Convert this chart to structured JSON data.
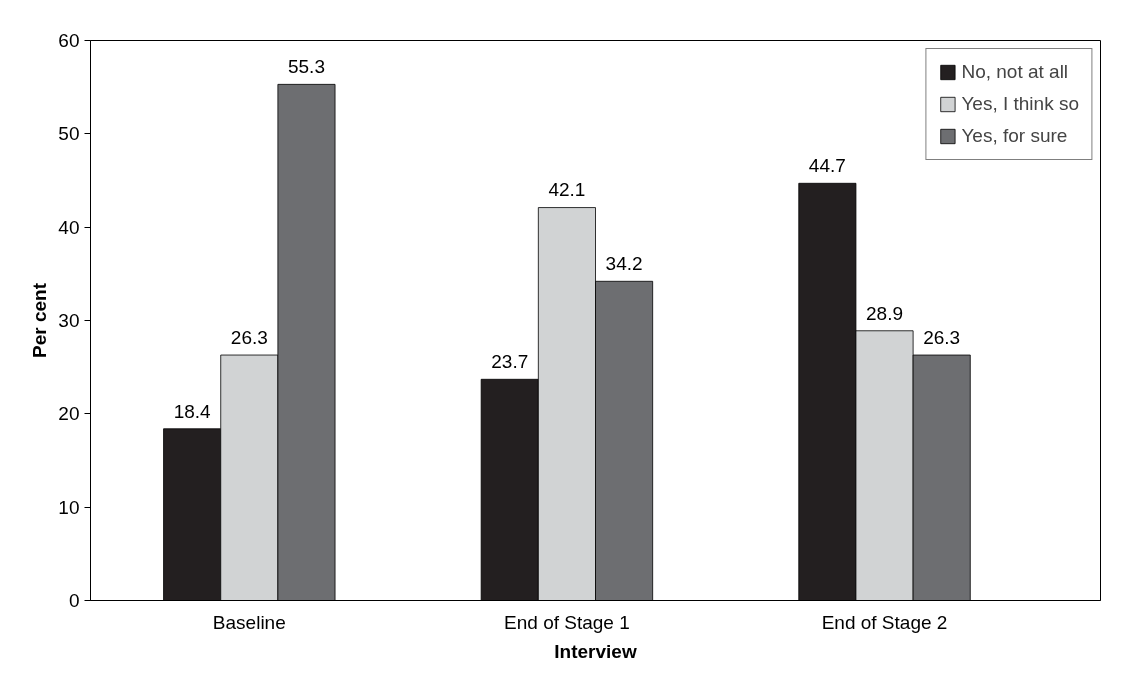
{
  "chart_data": {
    "type": "bar",
    "xlabel": "Interview",
    "ylabel": "Per cent",
    "categories": [
      "Baseline",
      "End of Stage 1",
      "End of Stage 2"
    ],
    "series": [
      {
        "name": "No, not at all",
        "color": "#231f20",
        "values": [
          18.4,
          23.7,
          44.7
        ]
      },
      {
        "name": "Yes, I think so",
        "color": "#d1d3d4",
        "values": [
          26.3,
          42.1,
          28.9
        ]
      },
      {
        "name": "Yes, for sure",
        "color": "#6d6e71",
        "values": [
          55.3,
          34.2,
          26.3
        ]
      }
    ],
    "ylim": [
      0,
      60
    ],
    "yticks": [
      0,
      10,
      20,
      30,
      40,
      50,
      60
    ],
    "grid": false,
    "legend": "top right",
    "data_labels": true
  }
}
